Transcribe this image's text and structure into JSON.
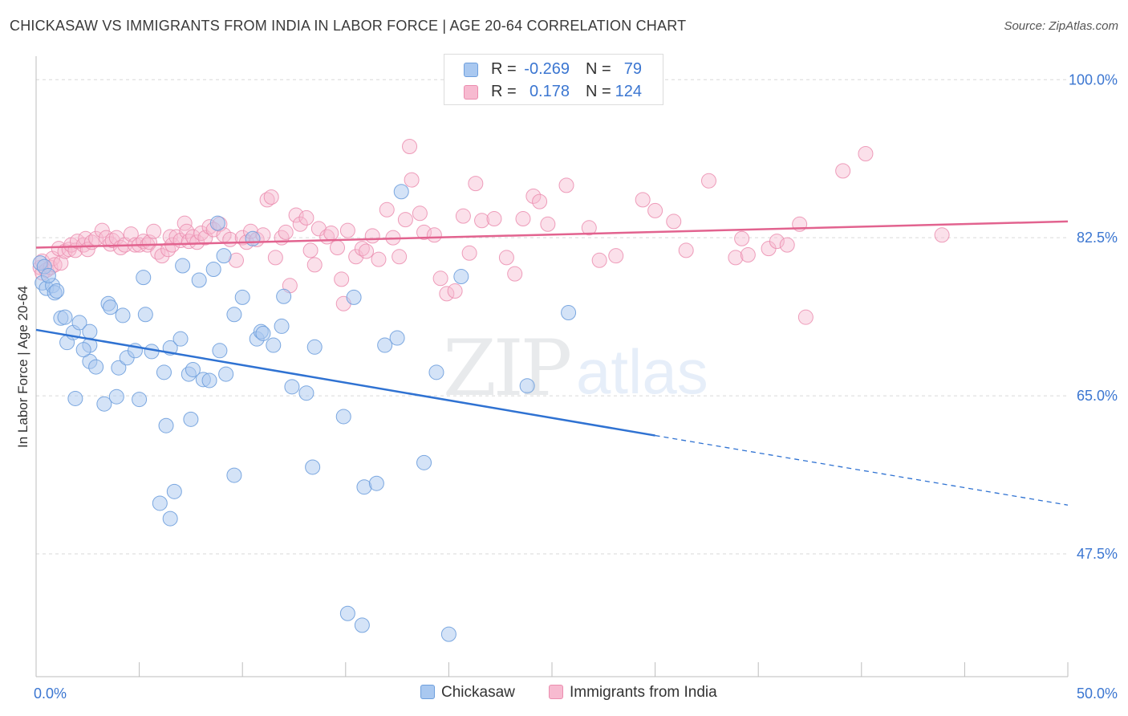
{
  "title": "CHICKASAW VS IMMIGRANTS FROM INDIA IN LABOR FORCE | AGE 20-64 CORRELATION CHART",
  "source": "Source: ZipAtlas.com",
  "watermark": {
    "zip": "ZIP",
    "atlas": "atlas"
  },
  "stats": {
    "rows": [
      {
        "r_label": "R =",
        "r_value": "-0.269",
        "n_label": "N =",
        "n_value": "79"
      },
      {
        "r_label": "R =",
        "r_value": "0.178",
        "n_label": "N =",
        "n_value": "124"
      }
    ]
  },
  "legend": {
    "items": [
      "Chickasaw",
      "Immigrants from India"
    ]
  },
  "colors": {
    "chickasaw_fill": "#a9c8f0",
    "chickasaw_stroke": "#6e9fdd",
    "chickasaw_line": "#2f72d2",
    "india_fill": "#f7bad0",
    "india_stroke": "#eb8daf",
    "india_line": "#e2638f",
    "tick_label": "#3b76d1",
    "grid": "#d9d9d9"
  },
  "chart_data": {
    "type": "scatter",
    "title": "CHICKASAW VS IMMIGRANTS FROM INDIA IN LABOR FORCE | AGE 20-64 CORRELATION CHART",
    "xlabel": "",
    "ylabel": "In Labor Force | Age 20-64",
    "xlim": [
      0,
      50
    ],
    "ylim": [
      33.9,
      102.6
    ],
    "x_tick_labels": [
      "0.0%",
      "50.0%"
    ],
    "y_ticks": [
      47.5,
      65.0,
      82.5,
      100.0
    ],
    "y_tick_labels": [
      "47.5%",
      "65.0%",
      "82.5%",
      "100.0%"
    ],
    "grid": true,
    "legend_position": "bottom-center",
    "series": [
      {
        "name": "Chickasaw",
        "trend": {
          "x": [
            0,
            30
          ],
          "y": [
            72.3,
            60.6
          ],
          "dashed_to": [
            50,
            52.9
          ]
        },
        "points": [
          [
            0.2,
            79.7
          ],
          [
            0.3,
            77.5
          ],
          [
            0.5,
            76.9
          ],
          [
            0.8,
            77.2
          ],
          [
            0.9,
            76.4
          ],
          [
            1.0,
            76.6
          ],
          [
            1.2,
            73.6
          ],
          [
            1.4,
            73.7
          ],
          [
            1.5,
            70.9
          ],
          [
            1.8,
            72.0
          ],
          [
            1.9,
            64.7
          ],
          [
            2.1,
            73.1
          ],
          [
            2.6,
            70.6
          ],
          [
            2.6,
            72.1
          ],
          [
            2.6,
            68.8
          ],
          [
            2.9,
            68.2
          ],
          [
            3.3,
            64.1
          ],
          [
            3.5,
            75.2
          ],
          [
            3.6,
            74.8
          ],
          [
            3.9,
            64.9
          ],
          [
            4.0,
            68.1
          ],
          [
            4.2,
            73.9
          ],
          [
            4.4,
            69.2
          ],
          [
            4.8,
            70.0
          ],
          [
            5.0,
            64.6
          ],
          [
            5.2,
            78.1
          ],
          [
            5.3,
            74.0
          ],
          [
            5.6,
            69.9
          ],
          [
            6.0,
            53.1
          ],
          [
            6.2,
            67.6
          ],
          [
            6.3,
            61.7
          ],
          [
            6.5,
            51.4
          ],
          [
            6.5,
            70.3
          ],
          [
            6.7,
            54.4
          ],
          [
            7.0,
            71.3
          ],
          [
            7.1,
            79.4
          ],
          [
            7.4,
            67.4
          ],
          [
            7.5,
            62.4
          ],
          [
            7.6,
            67.9
          ],
          [
            7.9,
            77.8
          ],
          [
            8.1,
            66.8
          ],
          [
            8.4,
            66.7
          ],
          [
            8.6,
            79.0
          ],
          [
            8.8,
            84.1
          ],
          [
            8.9,
            70.0
          ],
          [
            9.1,
            80.5
          ],
          [
            9.2,
            67.4
          ],
          [
            9.6,
            74.0
          ],
          [
            9.6,
            56.2
          ],
          [
            10.0,
            75.9
          ],
          [
            10.5,
            82.4
          ],
          [
            10.7,
            71.3
          ],
          [
            10.9,
            72.1
          ],
          [
            11.0,
            71.9
          ],
          [
            11.5,
            70.6
          ],
          [
            11.9,
            72.7
          ],
          [
            12.0,
            76.0
          ],
          [
            12.4,
            66.0
          ],
          [
            13.1,
            65.3
          ],
          [
            13.4,
            57.1
          ],
          [
            13.5,
            70.4
          ],
          [
            14.9,
            62.7
          ],
          [
            15.1,
            40.9
          ],
          [
            15.4,
            75.9
          ],
          [
            15.8,
            39.6
          ],
          [
            15.9,
            54.9
          ],
          [
            16.5,
            55.3
          ],
          [
            16.9,
            70.6
          ],
          [
            17.5,
            71.4
          ],
          [
            17.7,
            87.6
          ],
          [
            18.8,
            57.6
          ],
          [
            19.4,
            67.6
          ],
          [
            20.0,
            38.6
          ],
          [
            20.6,
            78.2
          ],
          [
            23.8,
            66.1
          ],
          [
            25.8,
            74.2
          ],
          [
            0.4,
            79.3
          ],
          [
            0.6,
            78.3
          ],
          [
            2.3,
            70.1
          ]
        ]
      },
      {
        "name": "Immigrants from India",
        "trend": {
          "x": [
            0,
            50
          ],
          "y": [
            81.4,
            84.3
          ]
        },
        "points": [
          [
            0.2,
            79.2
          ],
          [
            0.3,
            78.6
          ],
          [
            0.3,
            79.9
          ],
          [
            0.5,
            78.9
          ],
          [
            0.7,
            79.2
          ],
          [
            0.8,
            80.2
          ],
          [
            0.9,
            79.5
          ],
          [
            1.1,
            81.3
          ],
          [
            1.2,
            79.7
          ],
          [
            1.4,
            81.0
          ],
          [
            1.6,
            81.2
          ],
          [
            1.7,
            81.7
          ],
          [
            1.9,
            81.1
          ],
          [
            2.0,
            82.1
          ],
          [
            2.3,
            81.7
          ],
          [
            2.4,
            82.4
          ],
          [
            2.5,
            81.2
          ],
          [
            2.7,
            82.0
          ],
          [
            2.9,
            82.4
          ],
          [
            3.2,
            83.3
          ],
          [
            3.4,
            82.5
          ],
          [
            3.6,
            81.8
          ],
          [
            3.7,
            82.2
          ],
          [
            3.9,
            82.5
          ],
          [
            4.1,
            81.4
          ],
          [
            4.3,
            81.7
          ],
          [
            4.6,
            82.9
          ],
          [
            4.8,
            81.7
          ],
          [
            5.0,
            81.7
          ],
          [
            5.2,
            82.1
          ],
          [
            5.4,
            81.7
          ],
          [
            5.5,
            82.0
          ],
          [
            5.7,
            83.2
          ],
          [
            5.9,
            80.9
          ],
          [
            6.1,
            80.5
          ],
          [
            6.4,
            81.2
          ],
          [
            6.5,
            82.6
          ],
          [
            6.6,
            81.7
          ],
          [
            6.8,
            82.6
          ],
          [
            7.0,
            82.2
          ],
          [
            7.2,
            84.1
          ],
          [
            7.3,
            83.2
          ],
          [
            7.4,
            82.1
          ],
          [
            7.6,
            82.6
          ],
          [
            7.8,
            82.0
          ],
          [
            8.0,
            83.0
          ],
          [
            8.2,
            82.5
          ],
          [
            8.4,
            83.7
          ],
          [
            8.6,
            83.4
          ],
          [
            8.9,
            84.0
          ],
          [
            9.1,
            82.8
          ],
          [
            9.4,
            82.3
          ],
          [
            9.7,
            80.0
          ],
          [
            10.0,
            82.5
          ],
          [
            10.2,
            82.0
          ],
          [
            10.4,
            83.2
          ],
          [
            10.7,
            82.3
          ],
          [
            11.0,
            82.8
          ],
          [
            11.2,
            86.7
          ],
          [
            11.4,
            87.0
          ],
          [
            11.6,
            80.3
          ],
          [
            11.9,
            82.5
          ],
          [
            12.1,
            83.1
          ],
          [
            12.3,
            77.2
          ],
          [
            12.6,
            85.0
          ],
          [
            12.8,
            84.0
          ],
          [
            13.1,
            84.7
          ],
          [
            13.3,
            81.1
          ],
          [
            13.5,
            79.5
          ],
          [
            13.7,
            83.5
          ],
          [
            14.1,
            82.6
          ],
          [
            14.3,
            83.0
          ],
          [
            14.6,
            81.4
          ],
          [
            14.8,
            77.9
          ],
          [
            14.9,
            75.2
          ],
          [
            15.1,
            83.3
          ],
          [
            15.5,
            80.4
          ],
          [
            15.8,
            81.3
          ],
          [
            16.0,
            81.0
          ],
          [
            16.3,
            82.7
          ],
          [
            16.6,
            80.1
          ],
          [
            17.0,
            85.6
          ],
          [
            17.3,
            82.5
          ],
          [
            17.6,
            80.4
          ],
          [
            17.9,
            84.5
          ],
          [
            18.1,
            92.6
          ],
          [
            18.2,
            88.9
          ],
          [
            18.6,
            85.2
          ],
          [
            18.8,
            83.1
          ],
          [
            19.3,
            82.8
          ],
          [
            19.6,
            78.0
          ],
          [
            19.9,
            76.3
          ],
          [
            20.3,
            76.6
          ],
          [
            20.7,
            84.9
          ],
          [
            21.0,
            80.8
          ],
          [
            21.3,
            88.5
          ],
          [
            21.6,
            84.4
          ],
          [
            22.2,
            84.6
          ],
          [
            22.8,
            80.3
          ],
          [
            23.2,
            78.5
          ],
          [
            23.6,
            84.6
          ],
          [
            24.1,
            87.1
          ],
          [
            24.4,
            86.5
          ],
          [
            24.8,
            84.0
          ],
          [
            25.7,
            88.3
          ],
          [
            26.8,
            83.6
          ],
          [
            27.3,
            80.0
          ],
          [
            28.1,
            80.5
          ],
          [
            29.4,
            86.7
          ],
          [
            30.0,
            85.5
          ],
          [
            30.9,
            84.3
          ],
          [
            31.5,
            81.1
          ],
          [
            32.6,
            88.8
          ],
          [
            33.9,
            80.3
          ],
          [
            34.2,
            82.4
          ],
          [
            34.5,
            80.6
          ],
          [
            35.5,
            81.3
          ],
          [
            35.9,
            82.1
          ],
          [
            36.4,
            81.7
          ],
          [
            37.0,
            84.0
          ],
          [
            37.3,
            73.7
          ],
          [
            39.1,
            89.9
          ],
          [
            40.2,
            91.8
          ],
          [
            43.9,
            82.8
          ]
        ]
      }
    ]
  }
}
